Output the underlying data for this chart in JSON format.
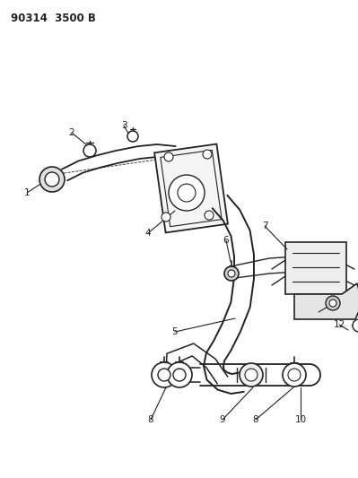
{
  "title_text": "90314  3500 B",
  "bg_color": "#ffffff",
  "line_color": "#222222",
  "figsize": [
    3.99,
    5.33
  ],
  "dpi": 100,
  "header_fontsize": 8.5,
  "label_fontsize": 7.5
}
